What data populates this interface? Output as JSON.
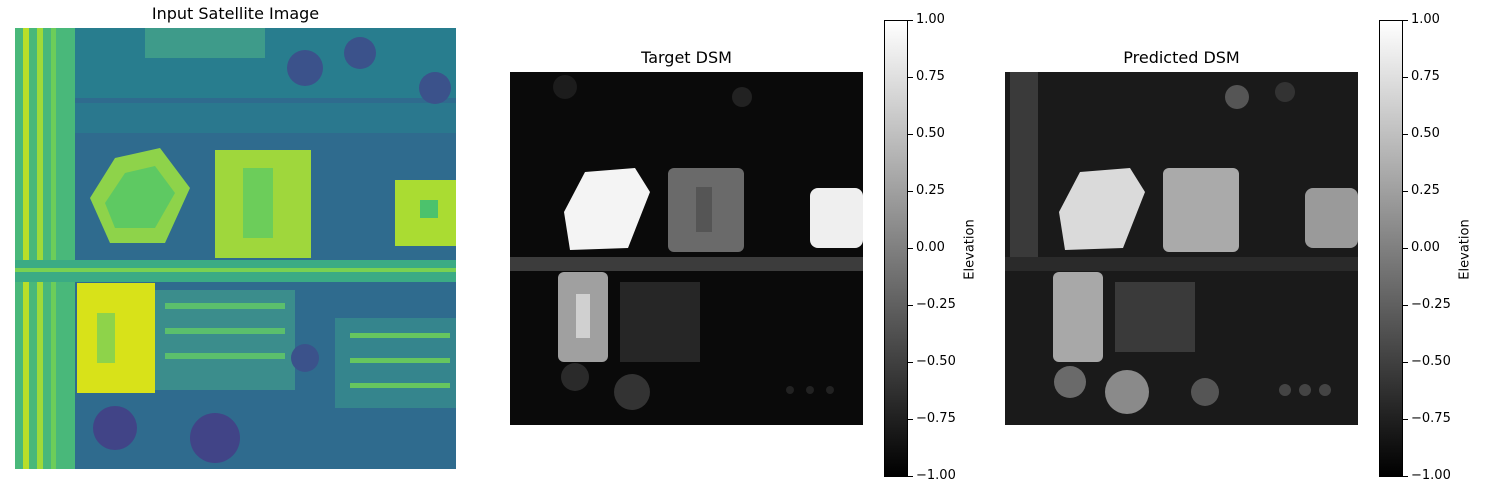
{
  "panels": [
    {
      "title": "Input Satellite Image"
    },
    {
      "title": "Target DSM"
    },
    {
      "title": "Predicted DSM"
    }
  ],
  "chart_data": [
    {
      "type": "heatmap",
      "title": "Input Satellite Image",
      "colormap": "viridis"
    },
    {
      "type": "heatmap",
      "title": "Target DSM",
      "colormap": "gray",
      "colorbar": {
        "label": "Elevation",
        "range": [
          -1.0,
          1.0
        ],
        "ticks": [
          "1.00",
          "0.75",
          "0.50",
          "0.25",
          "0.00",
          "−0.25",
          "−0.50",
          "−0.75",
          "−1.00"
        ]
      }
    },
    {
      "type": "heatmap",
      "title": "Predicted DSM",
      "colormap": "gray",
      "colorbar": {
        "label": "Elevation",
        "range": [
          -1.0,
          1.0
        ],
        "ticks": [
          "1.00",
          "0.75",
          "0.50",
          "0.25",
          "0.00",
          "−0.25",
          "−0.50",
          "−0.75",
          "−1.00"
        ]
      }
    }
  ]
}
